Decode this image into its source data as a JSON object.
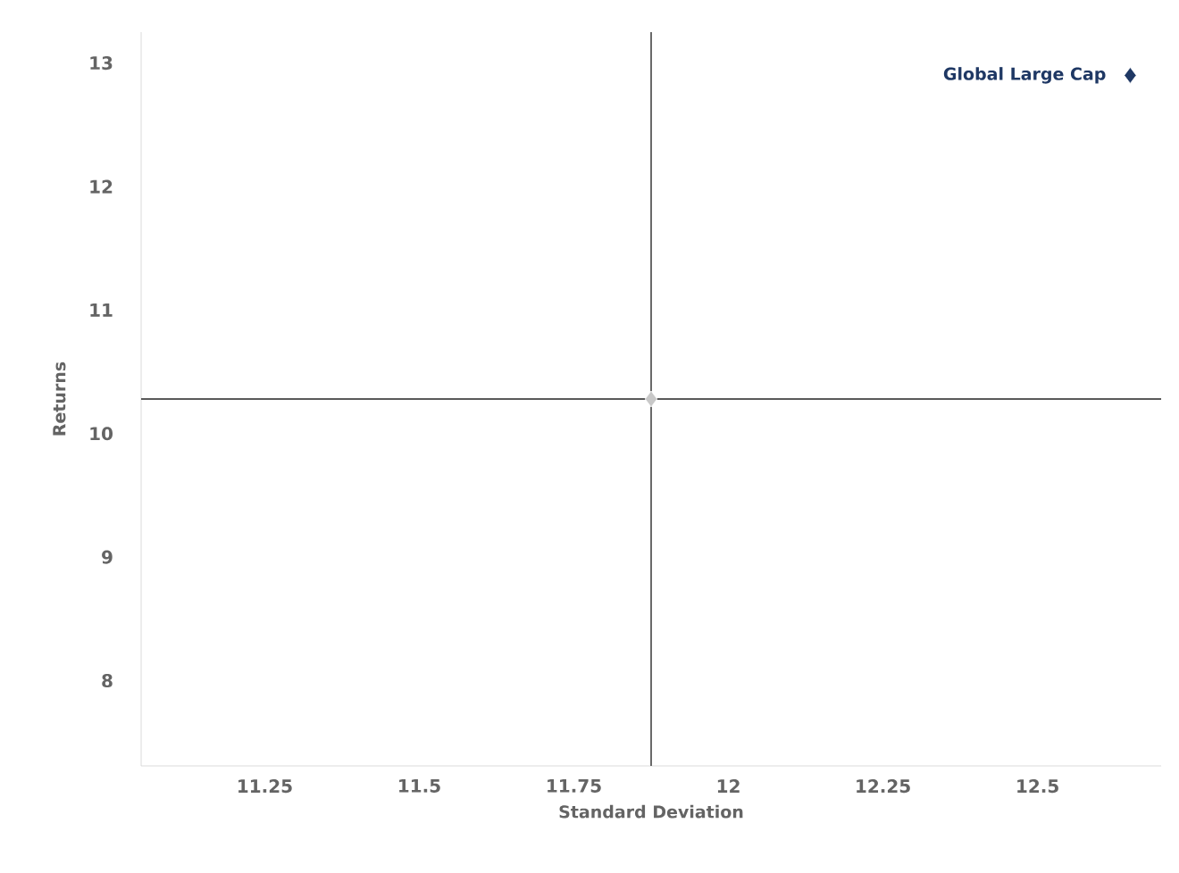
{
  "chart_data": {
    "type": "scatter",
    "xlabel": "Standard Deviation",
    "ylabel": "Returns",
    "xlim": [
      11.05,
      12.7
    ],
    "xticks": [
      11.25,
      11.5,
      11.75,
      12,
      12.25,
      12.5
    ],
    "ylim": [
      7.31,
      13.25
    ],
    "yticks": [
      8,
      9,
      10,
      11,
      12,
      13
    ],
    "marker": "diamond",
    "grid": false,
    "legend": false,
    "series": [
      {
        "name": "Global Large Cap",
        "color": "#1f3864",
        "x": [
          12.65
        ],
        "values": [
          12.9
        ]
      },
      {
        "color": "#c8c8c8",
        "x": [
          11.875
        ],
        "values": [
          10.28
        ]
      }
    ],
    "ref_lines": [
      {
        "axis": "x",
        "value": 11.875,
        "color": "#595959"
      },
      {
        "axis": "y",
        "value": 10.28,
        "color": "#595959"
      }
    ]
  }
}
